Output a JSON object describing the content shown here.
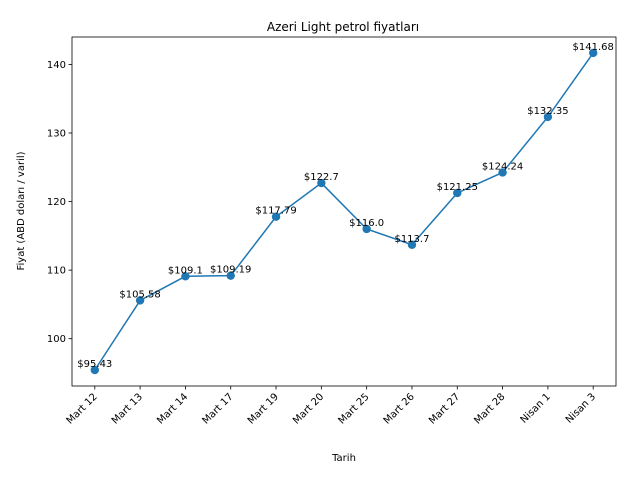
{
  "chart_data": {
    "type": "line",
    "title": "Azeri Light petrol fiyatları",
    "xlabel": "Tarih",
    "ylabel": "Fiyat (ABD doları / varil)",
    "categories": [
      "Mart 12",
      "Mart 13",
      "Mart 14",
      "Mart 17",
      "Mart 19",
      "Mart 20",
      "Mart 25",
      "Mart 26",
      "Mart 27",
      "Mart 28",
      "Nisan 1",
      "Nisan 3"
    ],
    "values": [
      95.43,
      105.58,
      109.1,
      109.19,
      117.79,
      122.7,
      116.0,
      113.7,
      121.25,
      124.24,
      132.35,
      141.68
    ],
    "data_labels": [
      "$95.43",
      "$105.58",
      "$109.1",
      "$109.19",
      "$117.79",
      "$122.7",
      "$116.0",
      "$113.7",
      "$121.25",
      "$124.24",
      "$132.35",
      "$141.68"
    ],
    "ylim": [
      93.1,
      144.0
    ],
    "yticks": [
      100,
      110,
      120,
      130,
      140
    ],
    "grid": false,
    "legend": "none",
    "color": "#1f77b4"
  }
}
